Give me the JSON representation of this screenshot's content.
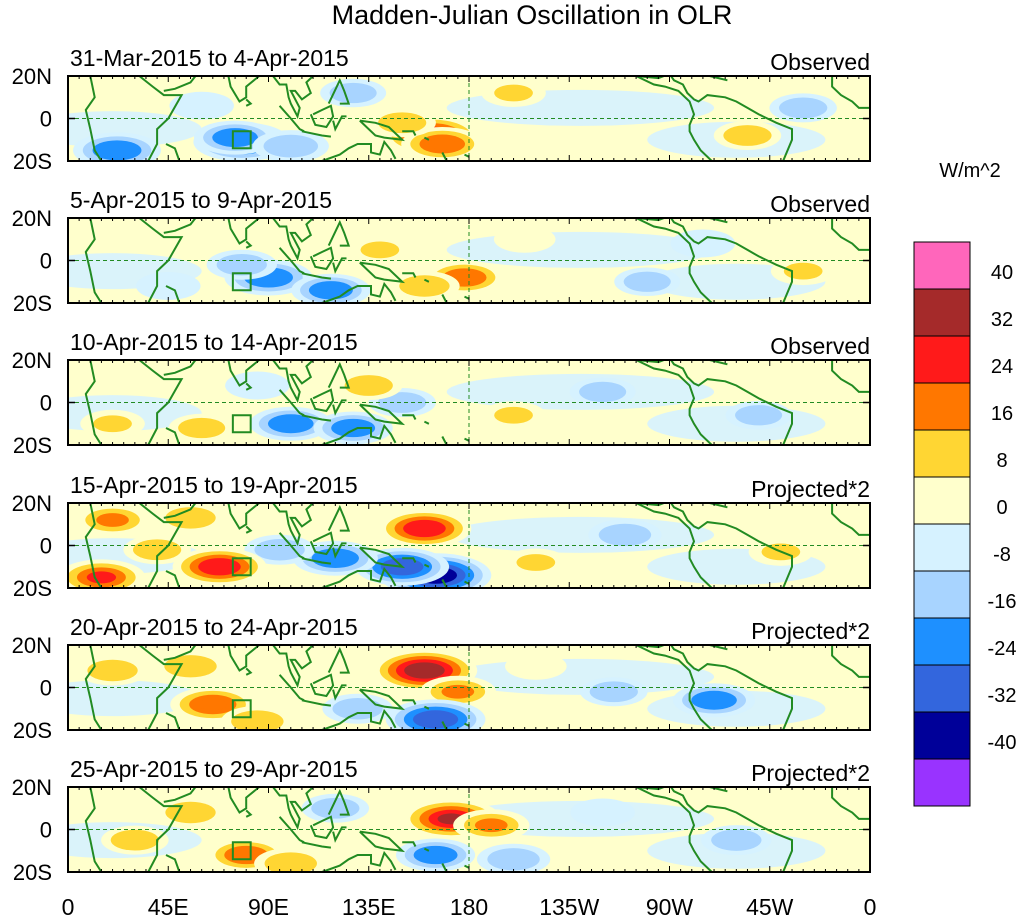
{
  "chart_data": {
    "type": "heatmap",
    "title": "Madden-Julian Oscillation in OLR",
    "variable": "OLR anomaly",
    "colorbar": {
      "unit_label": "W/m^2",
      "tick_labels": [
        "40",
        "32",
        "24",
        "16",
        "8",
        "0",
        "-8",
        "-16",
        "-24",
        "-32",
        "-40"
      ],
      "levels": [
        -40,
        -32,
        -24,
        -16,
        -8,
        0,
        8,
        16,
        24,
        32,
        40
      ],
      "colors": [
        "#9933ff",
        "#000099",
        "#3366dd",
        "#1e90ff",
        "#a8d4ff",
        "#d6f2ff",
        "#ffffcc",
        "#ffd633",
        "#ff7700",
        "#ff1a1a",
        "#a52a2a",
        "#ff66bb"
      ]
    },
    "x_axis": {
      "tick_labels": [
        "0",
        "45E",
        "90E",
        "135E",
        "180",
        "135W",
        "90W",
        "45W",
        "0"
      ],
      "tick_lon": [
        0,
        45,
        90,
        135,
        180,
        225,
        270,
        315,
        360
      ]
    },
    "y_axis": {
      "tick_labels": [
        "20N",
        "0",
        "20S"
      ],
      "tick_lat": [
        20,
        0,
        -20
      ]
    },
    "panels": [
      {
        "dates": "31-Mar-2015 to 4-Apr-2015",
        "type": "Observed",
        "features": [
          {
            "lon": 78,
            "lat": -11,
            "value": -30
          },
          {
            "lon": 75,
            "lat": -9,
            "value": -20
          },
          {
            "lon": 100,
            "lat": -13,
            "value": -16
          },
          {
            "lon": 22,
            "lat": -15,
            "value": -24
          },
          {
            "lon": 60,
            "lat": 6,
            "value": -8
          },
          {
            "lon": 163,
            "lat": -8,
            "value": 30
          },
          {
            "lon": 168,
            "lat": -12,
            "value": 20
          },
          {
            "lon": 150,
            "lat": -2,
            "value": 10
          },
          {
            "lon": 200,
            "lat": 12,
            "value": 8
          },
          {
            "lon": 305,
            "lat": -8,
            "value": 10
          },
          {
            "lon": 330,
            "lat": 5,
            "value": -10
          },
          {
            "lon": 128,
            "lat": 12,
            "value": -9
          }
        ]
      },
      {
        "dates": "5-Apr-2015 to 9-Apr-2015",
        "type": "Observed",
        "features": [
          {
            "lon": 90,
            "lat": -8,
            "value": -24
          },
          {
            "lon": 118,
            "lat": -14,
            "value": -18
          },
          {
            "lon": 78,
            "lat": -2,
            "value": -12
          },
          {
            "lon": 45,
            "lat": -12,
            "value": -8
          },
          {
            "lon": 178,
            "lat": -8,
            "value": 18
          },
          {
            "lon": 160,
            "lat": -12,
            "value": 12
          },
          {
            "lon": 140,
            "lat": 5,
            "value": 8
          },
          {
            "lon": 205,
            "lat": 10,
            "value": 6
          },
          {
            "lon": 330,
            "lat": -5,
            "value": 8
          },
          {
            "lon": 260,
            "lat": -10,
            "value": -9
          },
          {
            "lon": 285,
            "lat": 8,
            "value": -8
          }
        ]
      },
      {
        "dates": "10-Apr-2015 to 14-Apr-2015",
        "type": "Observed",
        "features": [
          {
            "lon": 100,
            "lat": -10,
            "value": -20
          },
          {
            "lon": 128,
            "lat": -12,
            "value": -18
          },
          {
            "lon": 150,
            "lat": 0,
            "value": -10
          },
          {
            "lon": 85,
            "lat": 8,
            "value": -8
          },
          {
            "lon": 20,
            "lat": -10,
            "value": 8
          },
          {
            "lon": 60,
            "lat": -12,
            "value": 9
          },
          {
            "lon": 135,
            "lat": 8,
            "value": 10
          },
          {
            "lon": 200,
            "lat": -6,
            "value": 8
          },
          {
            "lon": 240,
            "lat": 5,
            "value": -9
          },
          {
            "lon": 310,
            "lat": -6,
            "value": -9
          }
        ]
      },
      {
        "dates": "15-Apr-2015 to 19-Apr-2015",
        "type": "Projected*2",
        "features": [
          {
            "lon": 165,
            "lat": -14,
            "value": -40
          },
          {
            "lon": 150,
            "lat": -10,
            "value": -28
          },
          {
            "lon": 120,
            "lat": -6,
            "value": -22
          },
          {
            "lon": 95,
            "lat": -2,
            "value": -12
          },
          {
            "lon": 160,
            "lat": 8,
            "value": 28
          },
          {
            "lon": 68,
            "lat": -10,
            "value": 28
          },
          {
            "lon": 15,
            "lat": -15,
            "value": 24
          },
          {
            "lon": 20,
            "lat": 12,
            "value": 16
          },
          {
            "lon": 55,
            "lat": 13,
            "value": 12
          },
          {
            "lon": 40,
            "lat": -2,
            "value": 10
          },
          {
            "lon": 250,
            "lat": 5,
            "value": -14
          },
          {
            "lon": 210,
            "lat": -8,
            "value": 8
          },
          {
            "lon": 320,
            "lat": -3,
            "value": 8
          }
        ]
      },
      {
        "dates": "20-Apr-2015 to 24-Apr-2015",
        "type": "Projected*2",
        "features": [
          {
            "lon": 160,
            "lat": 8,
            "value": 36
          },
          {
            "lon": 175,
            "lat": -2,
            "value": 16
          },
          {
            "lon": 65,
            "lat": -8,
            "value": 22
          },
          {
            "lon": 85,
            "lat": -16,
            "value": 14
          },
          {
            "lon": 55,
            "lat": 10,
            "value": 14
          },
          {
            "lon": 20,
            "lat": 8,
            "value": 12
          },
          {
            "lon": 130,
            "lat": -10,
            "value": -12
          },
          {
            "lon": 165,
            "lat": -15,
            "value": -32
          },
          {
            "lon": 290,
            "lat": -6,
            "value": -20
          },
          {
            "lon": 245,
            "lat": -2,
            "value": -10
          },
          {
            "lon": 210,
            "lat": 10,
            "value": 6
          }
        ]
      },
      {
        "dates": "25-Apr-2015 to 29-Apr-2015",
        "type": "Projected*2",
        "features": [
          {
            "lon": 172,
            "lat": 5,
            "value": 32
          },
          {
            "lon": 190,
            "lat": 2,
            "value": 16
          },
          {
            "lon": 80,
            "lat": -12,
            "value": 18
          },
          {
            "lon": 100,
            "lat": -16,
            "value": 14
          },
          {
            "lon": 55,
            "lat": 8,
            "value": 12
          },
          {
            "lon": 30,
            "lat": -5,
            "value": 10
          },
          {
            "lon": 120,
            "lat": 10,
            "value": -10
          },
          {
            "lon": 165,
            "lat": -12,
            "value": -18
          },
          {
            "lon": 200,
            "lat": -14,
            "value": -14
          },
          {
            "lon": 300,
            "lat": -5,
            "value": -12
          },
          {
            "lon": 240,
            "lat": 8,
            "value": -8
          }
        ]
      }
    ]
  }
}
